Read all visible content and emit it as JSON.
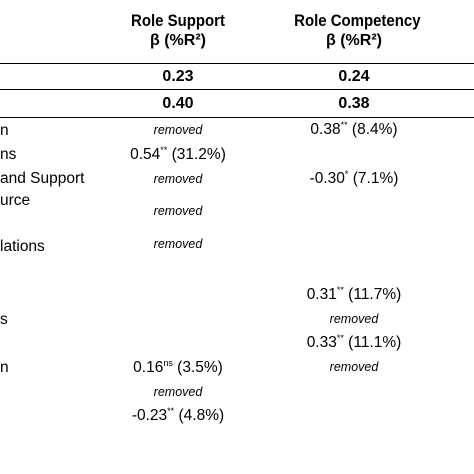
{
  "header": {
    "col1_title": "Role Support",
    "col1_sub": "β (%R²)",
    "col2_title": "Role Competency",
    "col2_sub": "β (%R²)"
  },
  "summary_rows": [
    {
      "col1": "0.23",
      "col2": "0.24"
    },
    {
      "col1": "0.40",
      "col2": "0.38"
    }
  ],
  "row_labels": [
    {
      "text": "n"
    },
    {
      "text": "ns"
    },
    {
      "text": "and Support"
    },
    {
      "text": "urce"
    },
    {
      "text": "lations"
    },
    {
      "text": "s"
    },
    {
      "text": "n"
    }
  ],
  "cells": {
    "r1_c1": "removed",
    "r1_c2_main": "0.38",
    "r1_c2_sup": "**",
    "r1_c2_pct": " (8.4%)",
    "r2_c1_main": "0.54",
    "r2_c1_sup": "**",
    "r2_c1_pct": " (31.2%)",
    "r3_c1": "removed",
    "r3_c2_main": "-0.30",
    "r3_c2_sup": "*",
    "r3_c2_pct": " (7.1%)",
    "r4_c1": "removed",
    "r5_c1": "removed",
    "r6_c2_main": "0.31",
    "r6_c2_sup": "**",
    "r6_c2_pct": " (11.7%)",
    "r7_c2": "removed",
    "r8_c2_main": "0.33",
    "r8_c2_sup": "**",
    "r8_c2_pct": " (11.1%)",
    "r9_c1_main": "0.16",
    "r9_c1_sup": "ns",
    "r9_c1_pct": " (3.5%)",
    "r9_c2": "removed",
    "r10_c1": "removed",
    "r11_c1_main": "-0.23",
    "r11_c1_sup": "**",
    "r11_c1_pct": " (4.8%)"
  }
}
